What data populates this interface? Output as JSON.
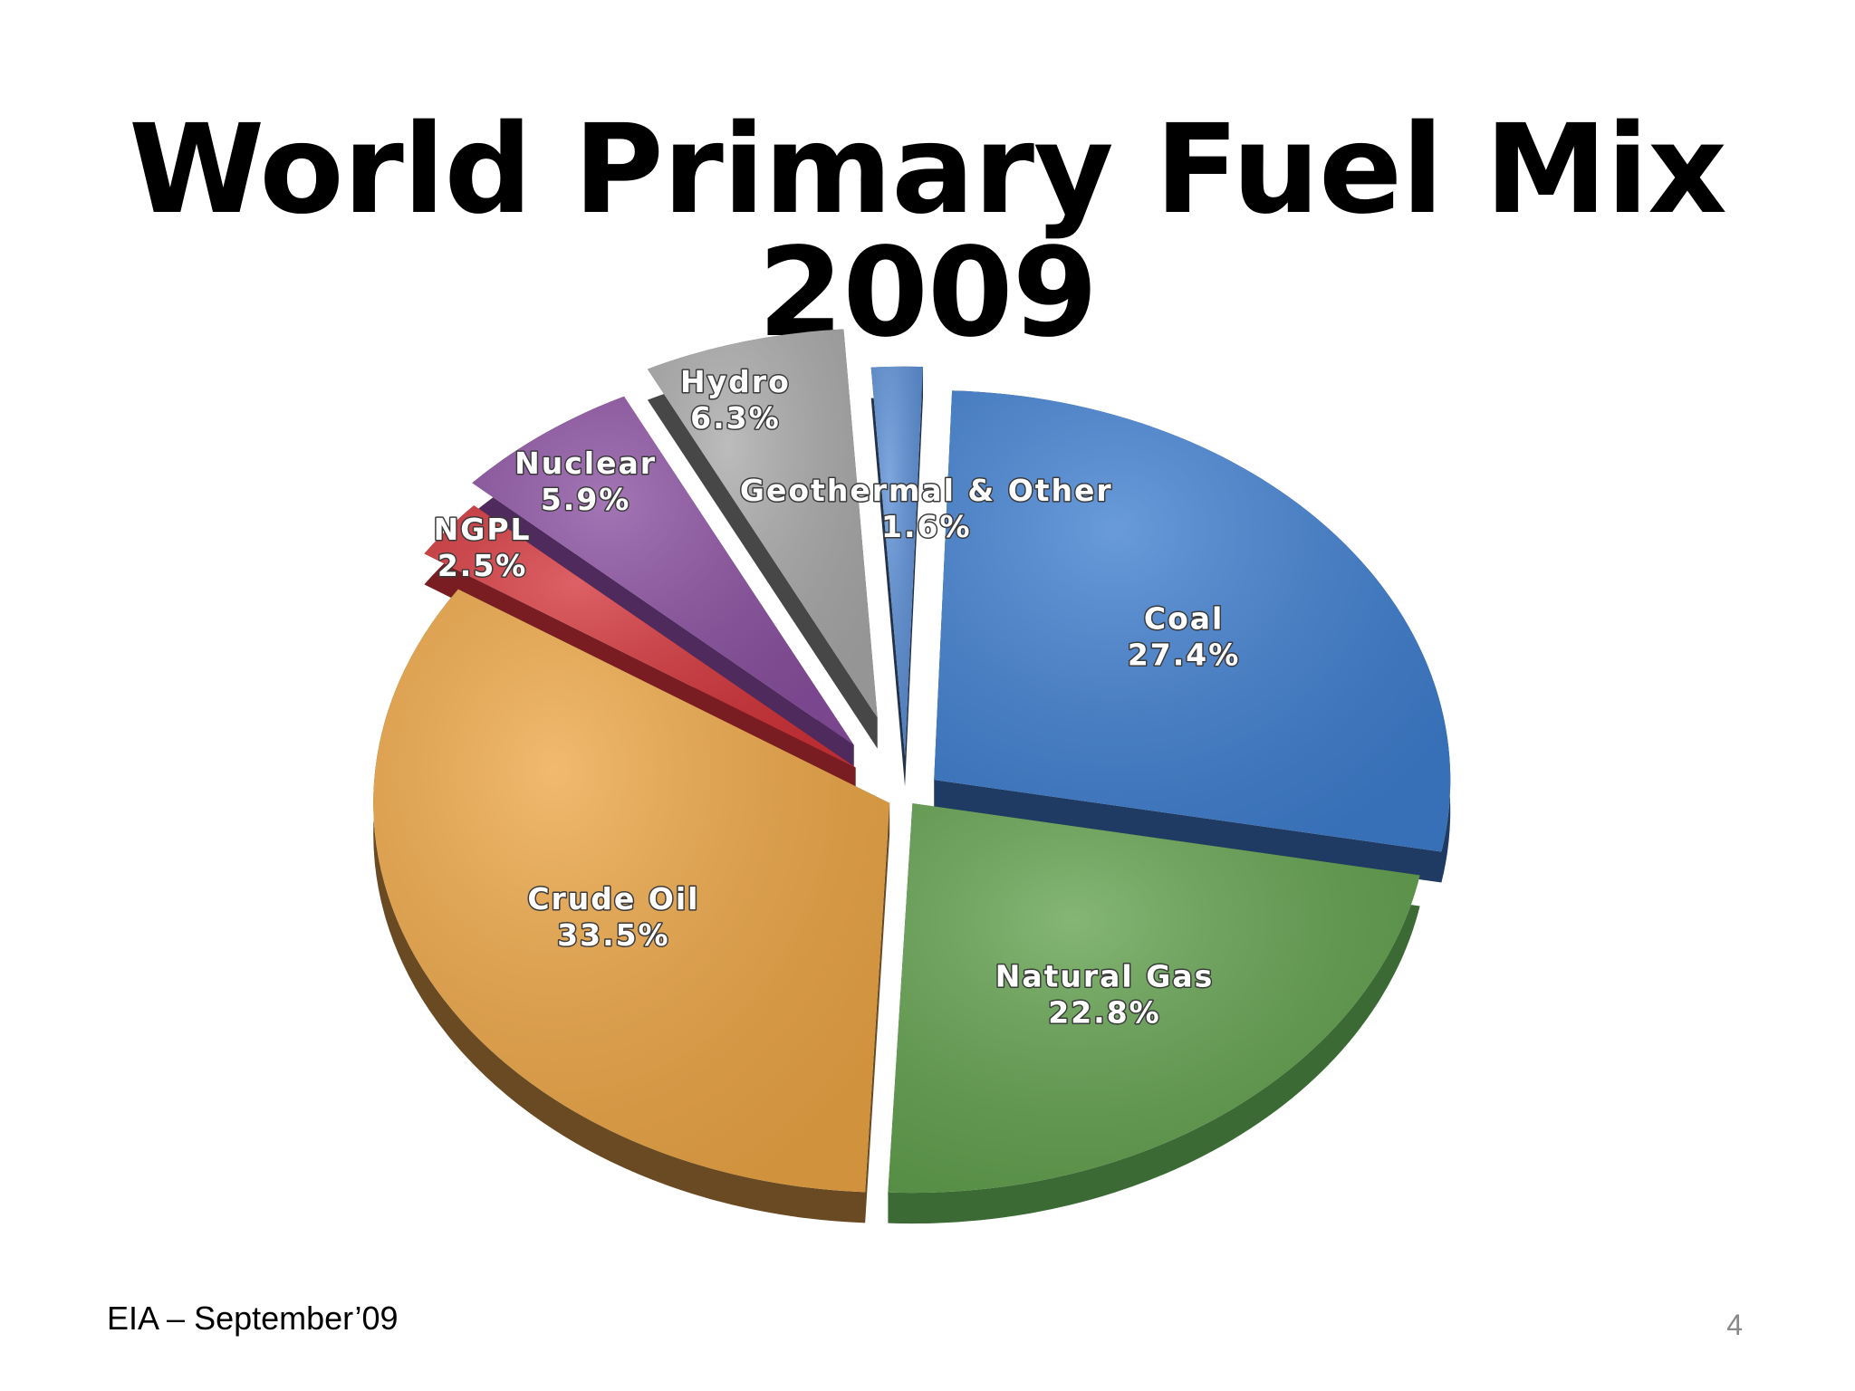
{
  "slide": {
    "title": "World Primary Fuel Mix 2009",
    "source": "EIA – September’09",
    "page_number": "4"
  },
  "chart_data": {
    "type": "pie",
    "title": "World Primary Fuel Mix 2009",
    "slices": [
      {
        "label": "Coal",
        "value": 27.4,
        "value_label": "27.4%",
        "color": "#3f7fd0",
        "side": "#1f3a63"
      },
      {
        "label": "Natural Gas",
        "value": 22.8,
        "value_label": "22.8%",
        "color": "#62a14e",
        "side": "#3b6a35"
      },
      {
        "label": "Crude Oil",
        "value": 33.5,
        "value_label": "33.5%",
        "color": "#eda645",
        "side": "#6a4a22"
      },
      {
        "label": "NGPL",
        "value": 2.5,
        "value_label": "2.5%",
        "color": "#d3343a",
        "side": "#7a1d22"
      },
      {
        "label": "Nuclear",
        "value": 5.9,
        "value_label": "5.9%",
        "color": "#8a4fa0",
        "side": "#4e2b5c"
      },
      {
        "label": "Hydro",
        "value": 6.3,
        "value_label": "6.3%",
        "color": "#a9a9a9",
        "side": "#474747"
      },
      {
        "label": "Geothermal & Other",
        "value": 1.6,
        "value_label": "1.6%",
        "color": "#5b8fd6",
        "side": "#23324a"
      }
    ]
  }
}
